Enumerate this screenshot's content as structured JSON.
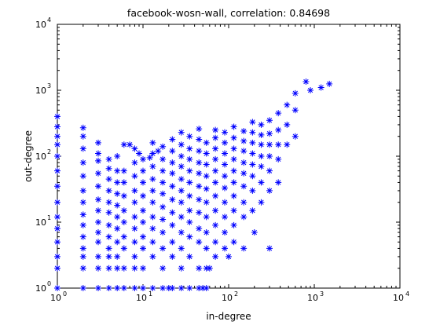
{
  "chart_data": {
    "type": "scatter",
    "title": "facebook-wosn-wall, correlation: 0.84698",
    "xlabel": "in-degree",
    "ylabel": "out-degree",
    "xscale": "log",
    "yscale": "log",
    "xlim": [
      1,
      10000
    ],
    "ylim": [
      1,
      10000
    ],
    "grid": false,
    "legend": "none",
    "marker": "asterisk",
    "marker_color": "#0000ff",
    "x_ticks": [
      {
        "base": "10",
        "exp": "0",
        "value": 1
      },
      {
        "base": "10",
        "exp": "1",
        "value": 10
      },
      {
        "base": "10",
        "exp": "2",
        "value": 100
      },
      {
        "base": "10",
        "exp": "3",
        "value": 1000
      },
      {
        "base": "10",
        "exp": "4",
        "value": 10000
      }
    ],
    "y_ticks": [
      {
        "base": "10",
        "exp": "0",
        "value": 1
      },
      {
        "base": "10",
        "exp": "1",
        "value": 10
      },
      {
        "base": "10",
        "exp": "2",
        "value": 100
      },
      {
        "base": "10",
        "exp": "3",
        "value": 1000
      },
      {
        "base": "10",
        "exp": "4",
        "value": 10000
      }
    ],
    "points": [
      {
        "x": 1,
        "y": 1
      },
      {
        "x": 1,
        "y": 2
      },
      {
        "x": 1,
        "y": 3
      },
      {
        "x": 1,
        "y": 5
      },
      {
        "x": 1,
        "y": 8
      },
      {
        "x": 1,
        "y": 12
      },
      {
        "x": 1,
        "y": 20
      },
      {
        "x": 1,
        "y": 35
      },
      {
        "x": 1,
        "y": 60
      },
      {
        "x": 1,
        "y": 100
      },
      {
        "x": 1,
        "y": 150
      },
      {
        "x": 1,
        "y": 200
      },
      {
        "x": 1,
        "y": 280
      },
      {
        "x": 1,
        "y": 400
      },
      {
        "x": 2,
        "y": 1
      },
      {
        "x": 2,
        "y": 2
      },
      {
        "x": 2,
        "y": 3
      },
      {
        "x": 2,
        "y": 4
      },
      {
        "x": 2,
        "y": 6
      },
      {
        "x": 2,
        "y": 9
      },
      {
        "x": 2,
        "y": 13
      },
      {
        "x": 2,
        "y": 20
      },
      {
        "x": 2,
        "y": 30
      },
      {
        "x": 2,
        "y": 50
      },
      {
        "x": 2,
        "y": 80
      },
      {
        "x": 2,
        "y": 130
      },
      {
        "x": 2,
        "y": 200
      },
      {
        "x": 2,
        "y": 270
      },
      {
        "x": 3,
        "y": 1
      },
      {
        "x": 3,
        "y": 2
      },
      {
        "x": 3,
        "y": 3
      },
      {
        "x": 3,
        "y": 5
      },
      {
        "x": 3,
        "y": 7
      },
      {
        "x": 3,
        "y": 10
      },
      {
        "x": 3,
        "y": 15
      },
      {
        "x": 3,
        "y": 22
      },
      {
        "x": 3,
        "y": 35
      },
      {
        "x": 3,
        "y": 55
      },
      {
        "x": 3,
        "y": 85
      },
      {
        "x": 3,
        "y": 110
      },
      {
        "x": 3,
        "y": 160
      },
      {
        "x": 4,
        "y": 1
      },
      {
        "x": 4,
        "y": 2
      },
      {
        "x": 4,
        "y": 3
      },
      {
        "x": 4,
        "y": 4
      },
      {
        "x": 4,
        "y": 6
      },
      {
        "x": 4,
        "y": 9
      },
      {
        "x": 4,
        "y": 14
      },
      {
        "x": 4,
        "y": 20
      },
      {
        "x": 4,
        "y": 30
      },
      {
        "x": 4,
        "y": 45
      },
      {
        "x": 4,
        "y": 65
      },
      {
        "x": 4,
        "y": 90
      },
      {
        "x": 5,
        "y": 1
      },
      {
        "x": 5,
        "y": 2
      },
      {
        "x": 5,
        "y": 3
      },
      {
        "x": 5,
        "y": 5
      },
      {
        "x": 5,
        "y": 8
      },
      {
        "x": 5,
        "y": 12
      },
      {
        "x": 5,
        "y": 18
      },
      {
        "x": 5,
        "y": 27
      },
      {
        "x": 5,
        "y": 40
      },
      {
        "x": 5,
        "y": 60
      },
      {
        "x": 5,
        "y": 100
      },
      {
        "x": 6,
        "y": 1
      },
      {
        "x": 6,
        "y": 2
      },
      {
        "x": 6,
        "y": 4
      },
      {
        "x": 6,
        "y": 6
      },
      {
        "x": 6,
        "y": 10
      },
      {
        "x": 6,
        "y": 15
      },
      {
        "x": 6,
        "y": 25
      },
      {
        "x": 6,
        "y": 40
      },
      {
        "x": 6,
        "y": 60
      },
      {
        "x": 6,
        "y": 150
      },
      {
        "x": 8,
        "y": 1
      },
      {
        "x": 8,
        "y": 2
      },
      {
        "x": 8,
        "y": 3
      },
      {
        "x": 8,
        "y": 5
      },
      {
        "x": 8,
        "y": 8
      },
      {
        "x": 8,
        "y": 12
      },
      {
        "x": 8,
        "y": 20
      },
      {
        "x": 8,
        "y": 30
      },
      {
        "x": 8,
        "y": 50
      },
      {
        "x": 8,
        "y": 80
      },
      {
        "x": 8,
        "y": 130
      },
      {
        "x": 10,
        "y": 1
      },
      {
        "x": 10,
        "y": 2
      },
      {
        "x": 10,
        "y": 4
      },
      {
        "x": 10,
        "y": 6
      },
      {
        "x": 10,
        "y": 10
      },
      {
        "x": 10,
        "y": 15
      },
      {
        "x": 10,
        "y": 25
      },
      {
        "x": 10,
        "y": 40
      },
      {
        "x": 10,
        "y": 60
      },
      {
        "x": 10,
        "y": 90
      },
      {
        "x": 13,
        "y": 1
      },
      {
        "x": 13,
        "y": 3
      },
      {
        "x": 13,
        "y": 5
      },
      {
        "x": 13,
        "y": 8
      },
      {
        "x": 13,
        "y": 12
      },
      {
        "x": 13,
        "y": 20
      },
      {
        "x": 13,
        "y": 30
      },
      {
        "x": 13,
        "y": 45
      },
      {
        "x": 13,
        "y": 70
      },
      {
        "x": 13,
        "y": 110
      },
      {
        "x": 13,
        "y": 160
      },
      {
        "x": 17,
        "y": 1
      },
      {
        "x": 17,
        "y": 2
      },
      {
        "x": 17,
        "y": 4
      },
      {
        "x": 17,
        "y": 7
      },
      {
        "x": 17,
        "y": 11
      },
      {
        "x": 17,
        "y": 17
      },
      {
        "x": 17,
        "y": 27
      },
      {
        "x": 17,
        "y": 40
      },
      {
        "x": 17,
        "y": 60
      },
      {
        "x": 17,
        "y": 90
      },
      {
        "x": 17,
        "y": 140
      },
      {
        "x": 22,
        "y": 1
      },
      {
        "x": 22,
        "y": 3
      },
      {
        "x": 22,
        "y": 5
      },
      {
        "x": 22,
        "y": 9
      },
      {
        "x": 22,
        "y": 14
      },
      {
        "x": 22,
        "y": 22
      },
      {
        "x": 22,
        "y": 35
      },
      {
        "x": 22,
        "y": 55
      },
      {
        "x": 22,
        "y": 80
      },
      {
        "x": 22,
        "y": 120
      },
      {
        "x": 22,
        "y": 180
      },
      {
        "x": 28,
        "y": 1
      },
      {
        "x": 28,
        "y": 2
      },
      {
        "x": 28,
        "y": 4
      },
      {
        "x": 28,
        "y": 7
      },
      {
        "x": 28,
        "y": 12
      },
      {
        "x": 28,
        "y": 20
      },
      {
        "x": 28,
        "y": 30
      },
      {
        "x": 28,
        "y": 45
      },
      {
        "x": 28,
        "y": 70
      },
      {
        "x": 28,
        "y": 100
      },
      {
        "x": 28,
        "y": 150
      },
      {
        "x": 28,
        "y": 230
      },
      {
        "x": 35,
        "y": 1
      },
      {
        "x": 35,
        "y": 3
      },
      {
        "x": 35,
        "y": 6
      },
      {
        "x": 35,
        "y": 10
      },
      {
        "x": 35,
        "y": 15
      },
      {
        "x": 35,
        "y": 25
      },
      {
        "x": 35,
        "y": 40
      },
      {
        "x": 35,
        "y": 60
      },
      {
        "x": 35,
        "y": 90
      },
      {
        "x": 35,
        "y": 130
      },
      {
        "x": 35,
        "y": 200
      },
      {
        "x": 45,
        "y": 1
      },
      {
        "x": 45,
        "y": 2
      },
      {
        "x": 45,
        "y": 5
      },
      {
        "x": 45,
        "y": 8
      },
      {
        "x": 45,
        "y": 14
      },
      {
        "x": 45,
        "y": 22
      },
      {
        "x": 45,
        "y": 35
      },
      {
        "x": 45,
        "y": 55
      },
      {
        "x": 45,
        "y": 80
      },
      {
        "x": 45,
        "y": 120
      },
      {
        "x": 45,
        "y": 180
      },
      {
        "x": 45,
        "y": 260
      },
      {
        "x": 55,
        "y": 1
      },
      {
        "x": 55,
        "y": 2
      },
      {
        "x": 55,
        "y": 4
      },
      {
        "x": 55,
        "y": 7
      },
      {
        "x": 55,
        "y": 12
      },
      {
        "x": 55,
        "y": 20
      },
      {
        "x": 55,
        "y": 32
      },
      {
        "x": 55,
        "y": 50
      },
      {
        "x": 55,
        "y": 75
      },
      {
        "x": 55,
        "y": 110
      },
      {
        "x": 55,
        "y": 160
      },
      {
        "x": 70,
        "y": 3
      },
      {
        "x": 70,
        "y": 5
      },
      {
        "x": 70,
        "y": 9
      },
      {
        "x": 70,
        "y": 15
      },
      {
        "x": 70,
        "y": 25
      },
      {
        "x": 70,
        "y": 40
      },
      {
        "x": 70,
        "y": 60
      },
      {
        "x": 70,
        "y": 90
      },
      {
        "x": 70,
        "y": 130
      },
      {
        "x": 70,
        "y": 190
      },
      {
        "x": 70,
        "y": 250
      },
      {
        "x": 90,
        "y": 4
      },
      {
        "x": 90,
        "y": 7
      },
      {
        "x": 90,
        "y": 12
      },
      {
        "x": 90,
        "y": 20
      },
      {
        "x": 90,
        "y": 33
      },
      {
        "x": 90,
        "y": 50
      },
      {
        "x": 90,
        "y": 75
      },
      {
        "x": 90,
        "y": 110
      },
      {
        "x": 90,
        "y": 160
      },
      {
        "x": 90,
        "y": 230
      },
      {
        "x": 115,
        "y": 5
      },
      {
        "x": 115,
        "y": 9
      },
      {
        "x": 115,
        "y": 15
      },
      {
        "x": 115,
        "y": 25
      },
      {
        "x": 115,
        "y": 40
      },
      {
        "x": 115,
        "y": 60
      },
      {
        "x": 115,
        "y": 90
      },
      {
        "x": 115,
        "y": 130
      },
      {
        "x": 115,
        "y": 190
      },
      {
        "x": 115,
        "y": 280
      },
      {
        "x": 150,
        "y": 4
      },
      {
        "x": 150,
        "y": 12
      },
      {
        "x": 150,
        "y": 20
      },
      {
        "x": 150,
        "y": 35
      },
      {
        "x": 150,
        "y": 55
      },
      {
        "x": 150,
        "y": 80
      },
      {
        "x": 150,
        "y": 120
      },
      {
        "x": 150,
        "y": 170
      },
      {
        "x": 150,
        "y": 240
      },
      {
        "x": 190,
        "y": 15
      },
      {
        "x": 190,
        "y": 30
      },
      {
        "x": 190,
        "y": 50
      },
      {
        "x": 190,
        "y": 75
      },
      {
        "x": 190,
        "y": 110
      },
      {
        "x": 190,
        "y": 160
      },
      {
        "x": 190,
        "y": 230
      },
      {
        "x": 190,
        "y": 330
      },
      {
        "x": 240,
        "y": 20
      },
      {
        "x": 240,
        "y": 40
      },
      {
        "x": 240,
        "y": 70
      },
      {
        "x": 240,
        "y": 100
      },
      {
        "x": 240,
        "y": 150
      },
      {
        "x": 240,
        "y": 210
      },
      {
        "x": 240,
        "y": 300
      },
      {
        "x": 300,
        "y": 30
      },
      {
        "x": 300,
        "y": 60
      },
      {
        "x": 300,
        "y": 100
      },
      {
        "x": 300,
        "y": 150
      },
      {
        "x": 300,
        "y": 220
      },
      {
        "x": 300,
        "y": 350
      },
      {
        "x": 380,
        "y": 40
      },
      {
        "x": 380,
        "y": 90
      },
      {
        "x": 380,
        "y": 150
      },
      {
        "x": 380,
        "y": 250
      },
      {
        "x": 380,
        "y": 450
      },
      {
        "x": 480,
        "y": 150
      },
      {
        "x": 480,
        "y": 300
      },
      {
        "x": 480,
        "y": 600
      },
      {
        "x": 600,
        "y": 200
      },
      {
        "x": 600,
        "y": 500
      },
      {
        "x": 600,
        "y": 900
      },
      {
        "x": 900,
        "y": 1000
      },
      {
        "x": 1200,
        "y": 1100
      },
      {
        "x": 1500,
        "y": 1250
      },
      {
        "x": 800,
        "y": 1350
      },
      {
        "x": 300,
        "y": 4
      },
      {
        "x": 200,
        "y": 7
      },
      {
        "x": 100,
        "y": 3
      },
      {
        "x": 50,
        "y": 1
      },
      {
        "x": 20,
        "y": 1
      },
      {
        "x": 60,
        "y": 2
      },
      {
        "x": 7,
        "y": 150
      },
      {
        "x": 15,
        "y": 120
      },
      {
        "x": 9,
        "y": 110
      },
      {
        "x": 12,
        "y": 95
      }
    ]
  }
}
